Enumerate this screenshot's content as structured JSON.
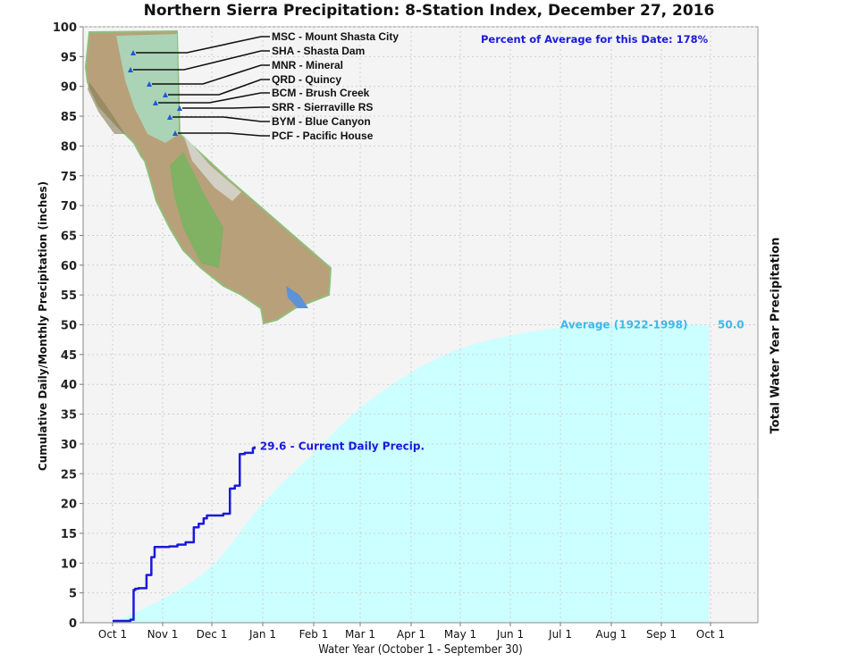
{
  "chart_data": {
    "type": "area",
    "title": "Northern Sierra Precipitation: 8-Station Index, December 27, 2016",
    "xlabel": "Water Year (October 1 - September 30)",
    "ylabel": "Cumulative Daily/Monthly Precipitation (inches)",
    "ylabel_right": "Total Water Year Precipitation",
    "ylim": [
      0,
      100
    ],
    "yticks": [
      0,
      5,
      10,
      15,
      20,
      25,
      30,
      35,
      40,
      45,
      50,
      55,
      60,
      65,
      70,
      75,
      80,
      85,
      90,
      95,
      100
    ],
    "xticks": [
      "Oct 1",
      "Nov 1",
      "Dec 1",
      "Jan 1",
      "Feb 1",
      "Mar 1",
      "Apr 1",
      "May 1",
      "Jun 1",
      "Jul 1",
      "Aug 1",
      "Sep 1",
      "Oct 1"
    ],
    "grid": true,
    "annotation_percent": "Percent of Average for this Date: 178%",
    "series": [
      {
        "name": "Average (1922-1998)",
        "type": "area",
        "color": "#ccffff",
        "end_label": "50.0",
        "x": [
          "Oct 1",
          "Nov 1",
          "Dec 1",
          "Jan 1",
          "Feb 1",
          "Mar 1",
          "Apr 1",
          "May 1",
          "Jun 1",
          "Jul 1",
          "Aug 1",
          "Sep 1",
          "Sep 30"
        ],
        "values": [
          0,
          4.0,
          9.5,
          20.0,
          28.5,
          36.0,
          42.0,
          46.0,
          48.2,
          49.5,
          49.9,
          50.0,
          50.0
        ]
      },
      {
        "name": "Current Daily Precip.",
        "type": "line",
        "color": "#1a1adb",
        "end_label": "29.6",
        "x": [
          "Oct 1",
          "Oct 12",
          "Oct 14",
          "Oct 15",
          "Oct 17",
          "Oct 22",
          "Oct 25",
          "Oct 27",
          "Nov 1",
          "Nov 5",
          "Nov 10",
          "Nov 15",
          "Nov 20",
          "Nov 23",
          "Nov 26",
          "Nov 28",
          "Dec 3",
          "Dec 8",
          "Dec 12",
          "Dec 15",
          "Dec 18",
          "Dec 21",
          "Dec 26",
          "Dec 27"
        ],
        "values": [
          0.3,
          0.5,
          5.5,
          5.7,
          5.8,
          8.0,
          11.0,
          12.7,
          12.7,
          12.8,
          13.1,
          13.5,
          16.0,
          16.6,
          17.5,
          18.0,
          18.0,
          18.3,
          22.5,
          23.0,
          28.3,
          28.5,
          29.3,
          29.6
        ]
      }
    ],
    "stations": [
      {
        "code": "MSC",
        "name": "Mount Shasta City",
        "label": "MSC - Mount Shasta City"
      },
      {
        "code": "SHA",
        "name": "Shasta Dam",
        "label": "SHA - Shasta Dam"
      },
      {
        "code": "MNR",
        "name": "Mineral",
        "label": "MNR - Mineral"
      },
      {
        "code": "QRD",
        "name": "Quincy",
        "label": "QRD - Quincy"
      },
      {
        "code": "BCM",
        "name": "Brush Creek",
        "label": "BCM - Brush Creek"
      },
      {
        "code": "SRR",
        "name": "Sierraville RS",
        "label": "SRR - Sierraville RS"
      },
      {
        "code": "BYM",
        "name": "Blue Canyon",
        "label": "BYM - Blue Canyon"
      },
      {
        "code": "PCF",
        "name": "Pacific House",
        "label": "PCF - Pacific House"
      }
    ]
  },
  "labels": {
    "avg_label": "Average (1922-1998)",
    "avg_end": "50.0",
    "current_label": "29.6 -  Current Daily Precip."
  }
}
